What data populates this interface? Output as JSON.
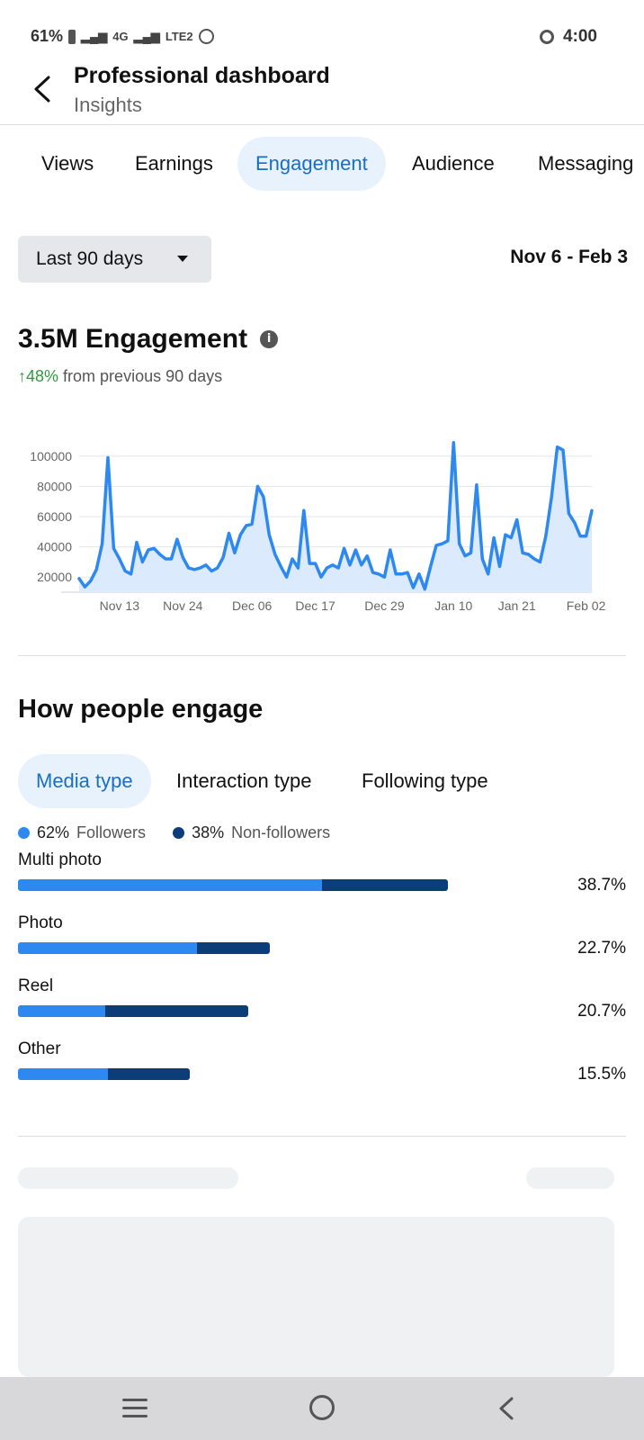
{
  "status": {
    "battery": "61%",
    "network": "4G",
    "lte": "LTE2",
    "time": "4:00"
  },
  "header": {
    "title": "Professional dashboard",
    "subtitle": "Insights"
  },
  "tabs": [
    {
      "label": "Views"
    },
    {
      "label": "Earnings"
    },
    {
      "label": "Engagement"
    },
    {
      "label": "Audience"
    },
    {
      "label": "Messaging"
    }
  ],
  "filters": {
    "range_label": "Last 90 days",
    "date_range": "Nov 6 - Feb 3"
  },
  "metric": {
    "value_label": "3.5M Engagement",
    "change_value": "↑48%",
    "change_text": "from previous 90 days"
  },
  "chart_data": {
    "type": "area",
    "title": "",
    "xlabel": "",
    "ylabel": "",
    "ylim": [
      10000,
      110000
    ],
    "yticks": [
      "100000",
      "80000",
      "60000",
      "40000",
      "20000"
    ],
    "xticks": [
      "Nov 13",
      "Nov 24",
      "Dec 06",
      "Dec 17",
      "Dec 29",
      "Jan 10",
      "Jan 21",
      "Feb 02"
    ],
    "x": [
      "Nov 6",
      "Nov 7",
      "Nov 8",
      "Nov 9",
      "Nov 10",
      "Nov 11",
      "Nov 12",
      "Nov 13",
      "Nov 14",
      "Nov 15",
      "Nov 16",
      "Nov 17",
      "Nov 18",
      "Nov 19",
      "Nov 20",
      "Nov 21",
      "Nov 22",
      "Nov 23",
      "Nov 24",
      "Nov 25",
      "Nov 26",
      "Nov 27",
      "Nov 28",
      "Nov 29",
      "Nov 30",
      "Dec 1",
      "Dec 2",
      "Dec 3",
      "Dec 4",
      "Dec 5",
      "Dec 6",
      "Dec 7",
      "Dec 8",
      "Dec 9",
      "Dec 10",
      "Dec 11",
      "Dec 12",
      "Dec 13",
      "Dec 14",
      "Dec 15",
      "Dec 16",
      "Dec 17",
      "Dec 18",
      "Dec 19",
      "Dec 20",
      "Dec 21",
      "Dec 22",
      "Dec 23",
      "Dec 24",
      "Dec 25",
      "Dec 26",
      "Dec 27",
      "Dec 28",
      "Dec 29",
      "Dec 30",
      "Dec 31",
      "Jan 1",
      "Jan 2",
      "Jan 3",
      "Jan 4",
      "Jan 5",
      "Jan 6",
      "Jan 7",
      "Jan 8",
      "Jan 9",
      "Jan 10",
      "Jan 11",
      "Jan 12",
      "Jan 13",
      "Jan 14",
      "Jan 15",
      "Jan 16",
      "Jan 17",
      "Jan 18",
      "Jan 19",
      "Jan 20",
      "Jan 21",
      "Jan 22",
      "Jan 23",
      "Jan 24",
      "Jan 25",
      "Jan 26",
      "Jan 27",
      "Jan 28",
      "Jan 29",
      "Jan 30",
      "Jan 31",
      "Feb 1",
      "Feb 2",
      "Feb 3"
    ],
    "values": [
      19000,
      13500,
      17500,
      25000,
      42000,
      99000,
      39000,
      32000,
      24000,
      22000,
      43000,
      30000,
      38000,
      39000,
      35000,
      32000,
      32000,
      45000,
      33000,
      26000,
      25000,
      26000,
      28000,
      24000,
      26000,
      33000,
      49000,
      36000,
      48000,
      54000,
      55000,
      80000,
      73000,
      48000,
      35000,
      27000,
      20000,
      32000,
      26000,
      64000,
      29000,
      29000,
      20000,
      26000,
      28000,
      26000,
      39000,
      28000,
      38000,
      28000,
      34000,
      23000,
      22000,
      20000,
      38000,
      22000,
      22000,
      23000,
      13000,
      22000,
      12000,
      27000,
      41000,
      42000,
      44000,
      109000,
      42000,
      34000,
      36000,
      81000,
      32000,
      22000,
      46000,
      27000,
      48000,
      46000,
      58000,
      36000,
      35000,
      32000,
      30000,
      47000,
      73000,
      106000,
      104000,
      62000,
      56000,
      47000,
      47000,
      64000
    ],
    "series": [
      {
        "name": "",
        "color": "#2d88f0"
      }
    ],
    "grid": true,
    "legend": "none"
  },
  "engage": {
    "title": "How people engage",
    "subtabs": [
      {
        "label": "Media type"
      },
      {
        "label": "Interaction type"
      },
      {
        "label": "Following type"
      }
    ],
    "legend": [
      {
        "value": "62%",
        "label": "Followers",
        "color": "#2d88f0"
      },
      {
        "value": "38%",
        "label": "Non-followers",
        "color": "#0b3d78"
      }
    ],
    "rows": [
      {
        "label": "Multi photo",
        "percent": "38.7%",
        "total": 38.7,
        "followers_share": 0.707
      },
      {
        "label": "Photo",
        "percent": "22.7%",
        "total": 22.7,
        "followers_share": 0.71
      },
      {
        "label": "Reel",
        "percent": "20.7%",
        "total": 20.7,
        "followers_share": 0.38
      },
      {
        "label": "Other",
        "percent": "15.5%",
        "total": 15.5,
        "followers_share": 0.52
      }
    ]
  },
  "icons": {
    "back": "back-arrow-icon",
    "info": "info-icon",
    "caret": "caret-down-icon"
  }
}
